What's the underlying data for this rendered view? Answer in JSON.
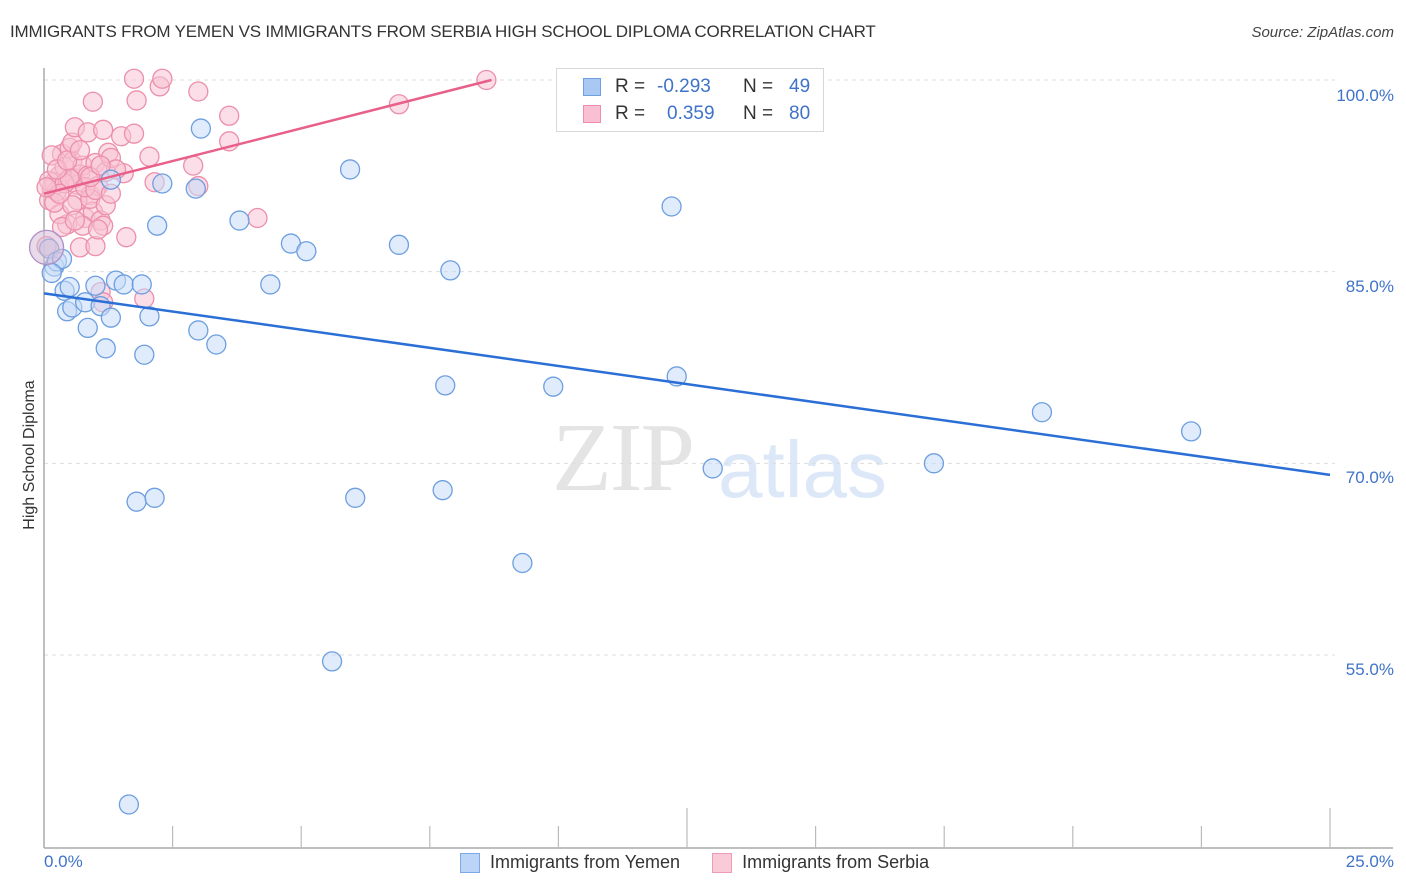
{
  "header": {
    "title": "IMMIGRANTS FROM YEMEN VS IMMIGRANTS FROM SERBIA HIGH SCHOOL DIPLOMA CORRELATION CHART",
    "source": "Source: ZipAtlas.com"
  },
  "legend": {
    "rows": [
      {
        "r_label": "R =",
        "r_value": "-0.293",
        "n_label": "N =",
        "n_value": "49",
        "color": "#a9c8f2",
        "border": "#6e9fe0"
      },
      {
        "r_label": "R =",
        "r_value": "0.359",
        "n_label": "N =",
        "n_value": "80",
        "color": "#f8c0d2",
        "border": "#ec8fab"
      }
    ],
    "bottom": [
      {
        "label": "Immigrants from Yemen",
        "color": "#bcd4f6",
        "border": "#7da8e6"
      },
      {
        "label": "Immigrants from Serbia",
        "color": "#f9cad8",
        "border": "#ee9bb5"
      }
    ]
  },
  "axes": {
    "ylabel": "High School Diploma",
    "yticks": [
      "100.0%",
      "85.0%",
      "70.0%",
      "55.0%"
    ],
    "xticks": [
      "0.0%",
      "25.0%"
    ]
  },
  "watermark": {
    "zip": "ZIP",
    "atlas": "atlas"
  },
  "colors": {
    "blue_point_fill": "#c6dbf7",
    "blue_point_stroke": "#6d9fe0",
    "blue_line": "#2b6fd6",
    "pink_point_fill": "#f8c3d3",
    "pink_point_stroke": "#ec8fab",
    "pink_line": "#e8608a",
    "axis_text": "#3f73c8",
    "grid": "#dddddd"
  },
  "chart_data": {
    "type": "scatter",
    "title": "IMMIGRANTS FROM YEMEN VS IMMIGRANTS FROM SERBIA HIGH SCHOOL DIPLOMA CORRELATION CHART",
    "xlabel": "",
    "ylabel": "High School Diploma",
    "xlim": [
      0,
      25
    ],
    "ylim": [
      42,
      101.5
    ],
    "yticks": [
      100,
      85,
      70,
      55
    ],
    "xticks": [
      0,
      25
    ],
    "grid": true,
    "legend_position": "top-center and bottom",
    "series": [
      {
        "name": "Immigrants from Yemen",
        "R": -0.293,
        "N": 49,
        "trend": {
          "x": [
            0,
            25
          ],
          "y": [
            83.3,
            69.1
          ]
        },
        "points": [
          [
            0.1,
            86.8
          ],
          [
            0.2,
            85.4
          ],
          [
            0.25,
            85.8
          ],
          [
            0.35,
            86.0
          ],
          [
            0.4,
            83.5
          ],
          [
            0.45,
            81.9
          ],
          [
            0.55,
            82.2
          ],
          [
            0.8,
            82.6
          ],
          [
            0.85,
            80.6
          ],
          [
            1.0,
            83.9
          ],
          [
            1.1,
            82.3
          ],
          [
            1.2,
            79.0
          ],
          [
            1.3,
            81.4
          ],
          [
            1.4,
            84.3
          ],
          [
            1.55,
            84.0
          ],
          [
            1.3,
            92.2
          ],
          [
            1.9,
            84.0
          ],
          [
            1.95,
            78.5
          ],
          [
            2.05,
            81.5
          ],
          [
            2.2,
            88.6
          ],
          [
            2.3,
            91.9
          ],
          [
            2.95,
            91.5
          ],
          [
            3.0,
            80.4
          ],
          [
            3.05,
            96.2
          ],
          [
            3.35,
            79.3
          ],
          [
            3.8,
            89.0
          ],
          [
            4.4,
            84.0
          ],
          [
            4.8,
            87.2
          ],
          [
            5.1,
            86.6
          ],
          [
            5.95,
            93.0
          ],
          [
            6.9,
            87.1
          ],
          [
            7.9,
            85.1
          ],
          [
            7.8,
            76.1
          ],
          [
            9.9,
            76.0
          ],
          [
            12.2,
            90.1
          ],
          [
            12.3,
            76.8
          ],
          [
            13.0,
            69.6
          ],
          [
            17.3,
            70.0
          ],
          [
            19.4,
            74.0
          ],
          [
            22.3,
            72.5
          ],
          [
            1.8,
            67.0
          ],
          [
            2.15,
            67.3
          ],
          [
            6.05,
            67.3
          ],
          [
            7.75,
            67.9
          ],
          [
            9.3,
            62.2
          ],
          [
            5.6,
            54.5
          ],
          [
            1.65,
            43.3
          ],
          [
            0.15,
            84.9
          ],
          [
            0.5,
            83.8
          ]
        ]
      },
      {
        "name": "Immigrants from Serbia",
        "R": 0.359,
        "N": 80,
        "trend": {
          "x": [
            0,
            8.7
          ],
          "y": [
            91.1,
            100.0
          ]
        },
        "points": [
          [
            0.05,
            87.0
          ],
          [
            0.1,
            90.6
          ],
          [
            0.15,
            91.5
          ],
          [
            0.2,
            92.0
          ],
          [
            0.25,
            91.3
          ],
          [
            0.3,
            92.5
          ],
          [
            0.35,
            94.2
          ],
          [
            0.4,
            93.2
          ],
          [
            0.45,
            92.1
          ],
          [
            0.5,
            94.7
          ],
          [
            0.55,
            93.6
          ],
          [
            0.6,
            92.3
          ],
          [
            0.65,
            91.8
          ],
          [
            0.7,
            92.6
          ],
          [
            0.75,
            93.3
          ],
          [
            0.8,
            89.2
          ],
          [
            0.85,
            92.5
          ],
          [
            0.9,
            91.0
          ],
          [
            0.95,
            89.7
          ],
          [
            1.0,
            93.5
          ],
          [
            1.05,
            91.7
          ],
          [
            1.1,
            89.0
          ],
          [
            1.15,
            88.6
          ],
          [
            1.2,
            92.8
          ],
          [
            0.55,
            95.1
          ],
          [
            0.6,
            96.3
          ],
          [
            0.85,
            95.9
          ],
          [
            0.95,
            98.3
          ],
          [
            1.15,
            96.1
          ],
          [
            1.25,
            94.3
          ],
          [
            1.3,
            93.9
          ],
          [
            1.5,
            95.6
          ],
          [
            1.55,
            92.7
          ],
          [
            1.75,
            95.8
          ],
          [
            1.8,
            98.4
          ],
          [
            1.6,
            87.7
          ],
          [
            0.7,
            86.9
          ],
          [
            0.45,
            88.7
          ],
          [
            0.3,
            89.5
          ],
          [
            1.75,
            100.1
          ],
          [
            2.25,
            99.5
          ],
          [
            2.3,
            100.1
          ],
          [
            2.05,
            94.0
          ],
          [
            2.15,
            92.0
          ],
          [
            2.9,
            93.3
          ],
          [
            3.0,
            91.7
          ],
          [
            3.0,
            99.1
          ],
          [
            3.6,
            97.2
          ],
          [
            3.6,
            95.2
          ],
          [
            4.15,
            89.2
          ],
          [
            6.9,
            98.1
          ],
          [
            8.6,
            100.0
          ],
          [
            1.1,
            83.4
          ],
          [
            1.95,
            82.9
          ],
          [
            1.15,
            82.6
          ],
          [
            0.1,
            92.1
          ],
          [
            0.2,
            90.4
          ],
          [
            0.35,
            88.5
          ],
          [
            0.4,
            91.9
          ],
          [
            0.5,
            92.3
          ],
          [
            0.65,
            90.6
          ],
          [
            0.75,
            88.6
          ],
          [
            0.9,
            90.7
          ],
          [
            1.0,
            87.0
          ],
          [
            1.05,
            88.3
          ],
          [
            1.2,
            90.2
          ],
          [
            0.15,
            94.1
          ],
          [
            0.25,
            93.0
          ],
          [
            0.55,
            90.2
          ],
          [
            0.6,
            89.0
          ],
          [
            0.8,
            91.6
          ],
          [
            1.0,
            91.4
          ],
          [
            1.3,
            91.1
          ],
          [
            1.4,
            93.0
          ],
          [
            0.3,
            91.1
          ],
          [
            0.45,
            93.7
          ],
          [
            0.7,
            94.5
          ],
          [
            0.9,
            92.4
          ],
          [
            1.1,
            93.3
          ],
          [
            0.05,
            91.6
          ]
        ]
      }
    ]
  }
}
